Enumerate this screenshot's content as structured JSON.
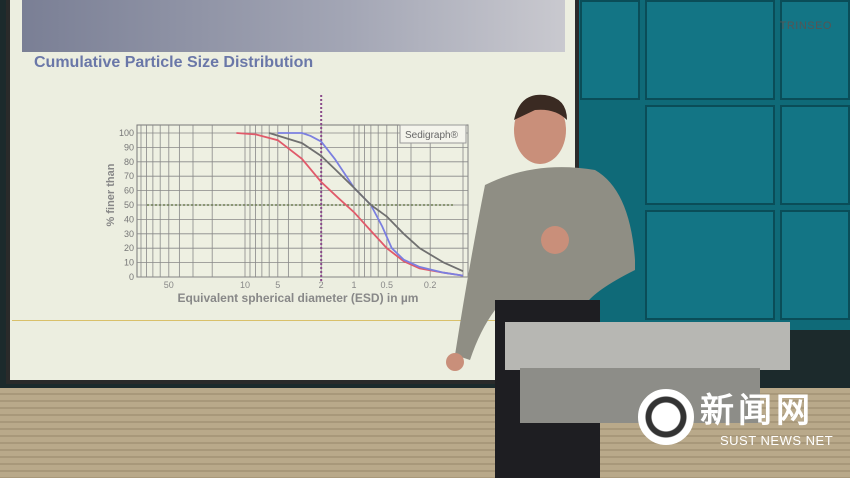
{
  "slide": {
    "brand": "TRINSEO",
    "title": "Cumulative Particle Size Distribution",
    "chart_data": {
      "type": "line",
      "title": "Cumulative Particle Size Distribution",
      "legend_box": "Sedigraph®",
      "xlabel": "Equivalent spherical diameter (ESD) in µm",
      "ylabel": "% finer than",
      "x_scale": "log-reversed",
      "xlim": [
        100,
        0.09
      ],
      "ylim": [
        0,
        100
      ],
      "xticks": [
        50,
        10,
        5,
        2,
        1,
        0.5,
        0.2
      ],
      "xtick_labels": [
        "50",
        "10",
        "5",
        "2",
        "1",
        "0.5",
        "0.2"
      ],
      "yticks": [
        0,
        10,
        20,
        30,
        40,
        50,
        60,
        70,
        80,
        90,
        100
      ],
      "grid": true,
      "reference_lines": {
        "y": 50,
        "x": 2
      },
      "series": [
        {
          "color": "#e05a6a",
          "x": [
            12,
            8,
            5,
            3,
            2,
            1.4,
            1,
            0.7,
            0.5,
            0.35,
            0.25,
            0.15,
            0.1
          ],
          "y": [
            100,
            99,
            95,
            82,
            66,
            55,
            45,
            32,
            20,
            11,
            6,
            3,
            1
          ]
        },
        {
          "color": "#7b7fe0",
          "x": [
            5,
            3,
            2.5,
            2,
            1.5,
            1,
            0.7,
            0.55,
            0.45,
            0.35,
            0.25,
            0.15,
            0.1
          ],
          "y": [
            100,
            100,
            98,
            94,
            82,
            62,
            50,
            35,
            20,
            12,
            7,
            3,
            1
          ]
        },
        {
          "color": "#707070",
          "x": [
            6,
            3,
            2,
            1.5,
            1,
            0.7,
            0.5,
            0.35,
            0.25,
            0.15,
            0.1
          ],
          "y": [
            100,
            93,
            84,
            75,
            62,
            50,
            42,
            30,
            20,
            10,
            4
          ]
        }
      ]
    }
  },
  "watermark": {
    "chinese": "新闻网",
    "english": "SUST NEWS NET"
  }
}
